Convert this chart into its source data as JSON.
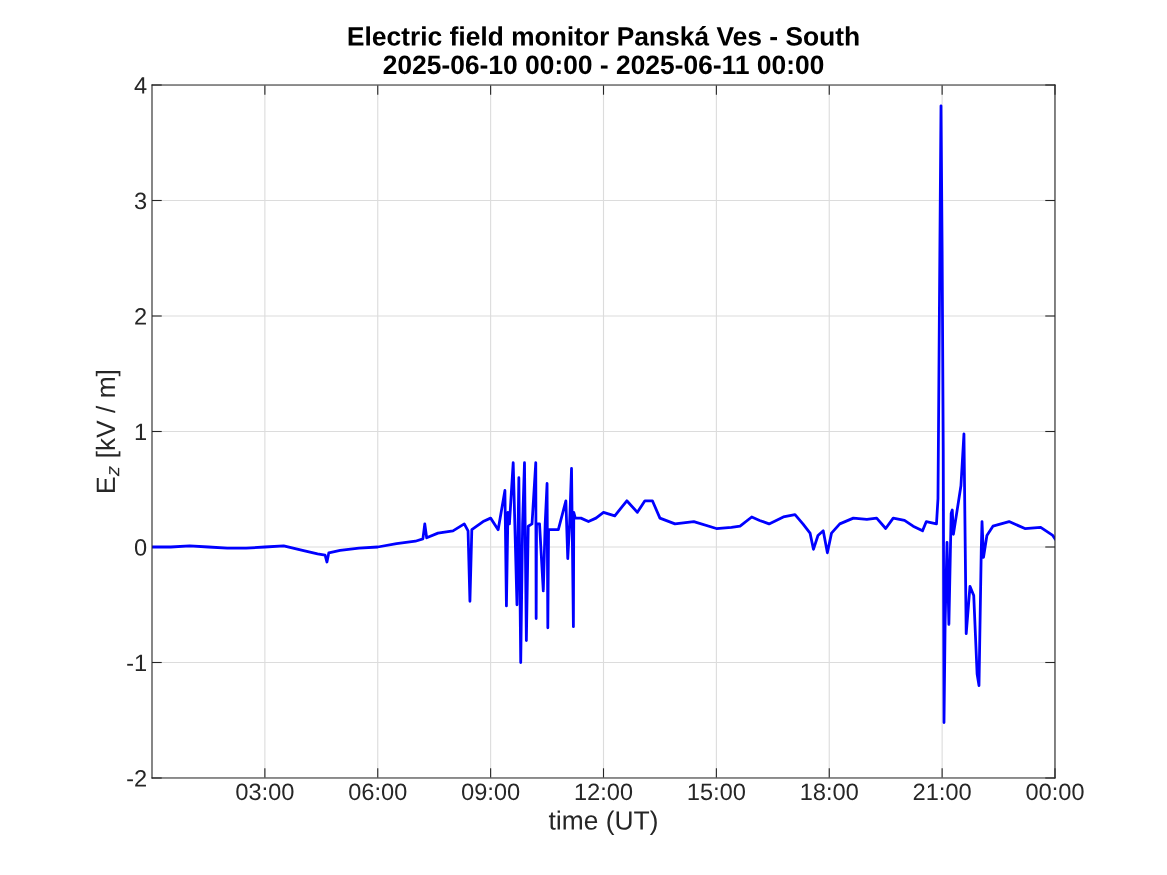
{
  "chart_data": {
    "type": "line",
    "title": "Electric field monitor Panská Ves - South\n2025-06-10 00:00 - 2025-06-11 00:00",
    "xlabel": "time (UT)",
    "ylabel": "E$_{z}$ [kV / m]",
    "xlim": [
      0,
      24
    ],
    "xticks": [
      {
        "value": 3,
        "label": "03:00"
      },
      {
        "value": 6,
        "label": "06:00"
      },
      {
        "value": 9,
        "label": "09:00"
      },
      {
        "value": 12,
        "label": "12:00"
      },
      {
        "value": 15,
        "label": "15:00"
      },
      {
        "value": 18,
        "label": "18:00"
      },
      {
        "value": 21,
        "label": "21:00"
      },
      {
        "value": 24,
        "label": "00:00"
      }
    ],
    "ylim": [
      -2,
      4
    ],
    "yticks": [
      -2,
      -1,
      0,
      1,
      2,
      3,
      4
    ],
    "grid": true,
    "line_style": "solid",
    "marker": "none",
    "series": [
      {
        "color": "#0000ff",
        "x": [
          0,
          0.5,
          1.0,
          1.5,
          2.0,
          2.5,
          3.0,
          3.5,
          4.0,
          4.4,
          4.6,
          4.65,
          4.7,
          5.0,
          5.5,
          6.0,
          6.5,
          7.0,
          7.2,
          7.25,
          7.3,
          7.6,
          8.0,
          8.3,
          8.4,
          8.45,
          8.5,
          8.8,
          9.0,
          9.2,
          9.38,
          9.42,
          9.46,
          9.5,
          9.6,
          9.7,
          9.75,
          9.8,
          9.85,
          9.9,
          9.95,
          10.0,
          10.1,
          10.2,
          10.21,
          10.22,
          10.3,
          10.4,
          10.45,
          10.5,
          10.52,
          10.54,
          10.6,
          10.8,
          11.0,
          11.05,
          11.1,
          11.15,
          11.2,
          11.21,
          11.25,
          11.4,
          11.6,
          11.8,
          12.0,
          12.3,
          12.62,
          12.9,
          13.1,
          13.3,
          13.5,
          13.9,
          14.4,
          15.0,
          15.4,
          15.63,
          15.94,
          16.15,
          16.4,
          16.78,
          17.09,
          17.3,
          17.49,
          17.58,
          17.7,
          17.84,
          17.95,
          18.06,
          18.28,
          18.64,
          19.0,
          19.26,
          19.5,
          19.7,
          20.0,
          20.23,
          20.48,
          20.58,
          20.85,
          20.89,
          20.93,
          20.97,
          21.0,
          21.03,
          21.05,
          21.08,
          21.13,
          21.18,
          21.24,
          21.27,
          21.3,
          21.5,
          21.58,
          21.64,
          21.74,
          21.84,
          21.93,
          21.98,
          22.04,
          22.06,
          22.1,
          22.19,
          22.35,
          22.78,
          23.2,
          23.62,
          23.94,
          24
        ],
        "values": [
          0.0,
          0.0,
          0.01,
          0.0,
          -0.01,
          -0.01,
          0.0,
          0.01,
          -0.03,
          -0.06,
          -0.07,
          -0.13,
          -0.05,
          -0.03,
          -0.01,
          0.0,
          0.03,
          0.05,
          0.07,
          0.2,
          0.08,
          0.12,
          0.14,
          0.2,
          0.14,
          -0.47,
          0.15,
          0.22,
          0.25,
          0.15,
          0.49,
          -0.51,
          0.3,
          0.2,
          0.73,
          -0.5,
          0.6,
          -1.0,
          0.2,
          0.73,
          -0.81,
          0.18,
          0.2,
          0.73,
          -0.62,
          0.2,
          0.2,
          -0.38,
          0.2,
          0.55,
          -0.7,
          0.15,
          0.15,
          0.15,
          0.4,
          -0.1,
          0.2,
          0.68,
          -0.69,
          0.3,
          0.25,
          0.25,
          0.22,
          0.25,
          0.3,
          0.27,
          0.4,
          0.3,
          0.4,
          0.4,
          0.25,
          0.2,
          0.22,
          0.16,
          0.17,
          0.18,
          0.26,
          0.23,
          0.2,
          0.26,
          0.28,
          0.2,
          0.12,
          -0.02,
          0.1,
          0.14,
          -0.05,
          0.12,
          0.2,
          0.25,
          0.24,
          0.25,
          0.16,
          0.25,
          0.23,
          0.18,
          0.14,
          0.22,
          0.2,
          0.42,
          2.16,
          3.82,
          2.57,
          0.84,
          -1.52,
          -0.65,
          0.04,
          -0.67,
          0.29,
          0.32,
          0.11,
          0.53,
          0.98,
          -0.75,
          -0.34,
          -0.42,
          -1.1,
          -1.2,
          -0.03,
          0.22,
          -0.09,
          0.1,
          0.18,
          0.22,
          0.16,
          0.17,
          0.1,
          0.07
        ]
      }
    ]
  }
}
